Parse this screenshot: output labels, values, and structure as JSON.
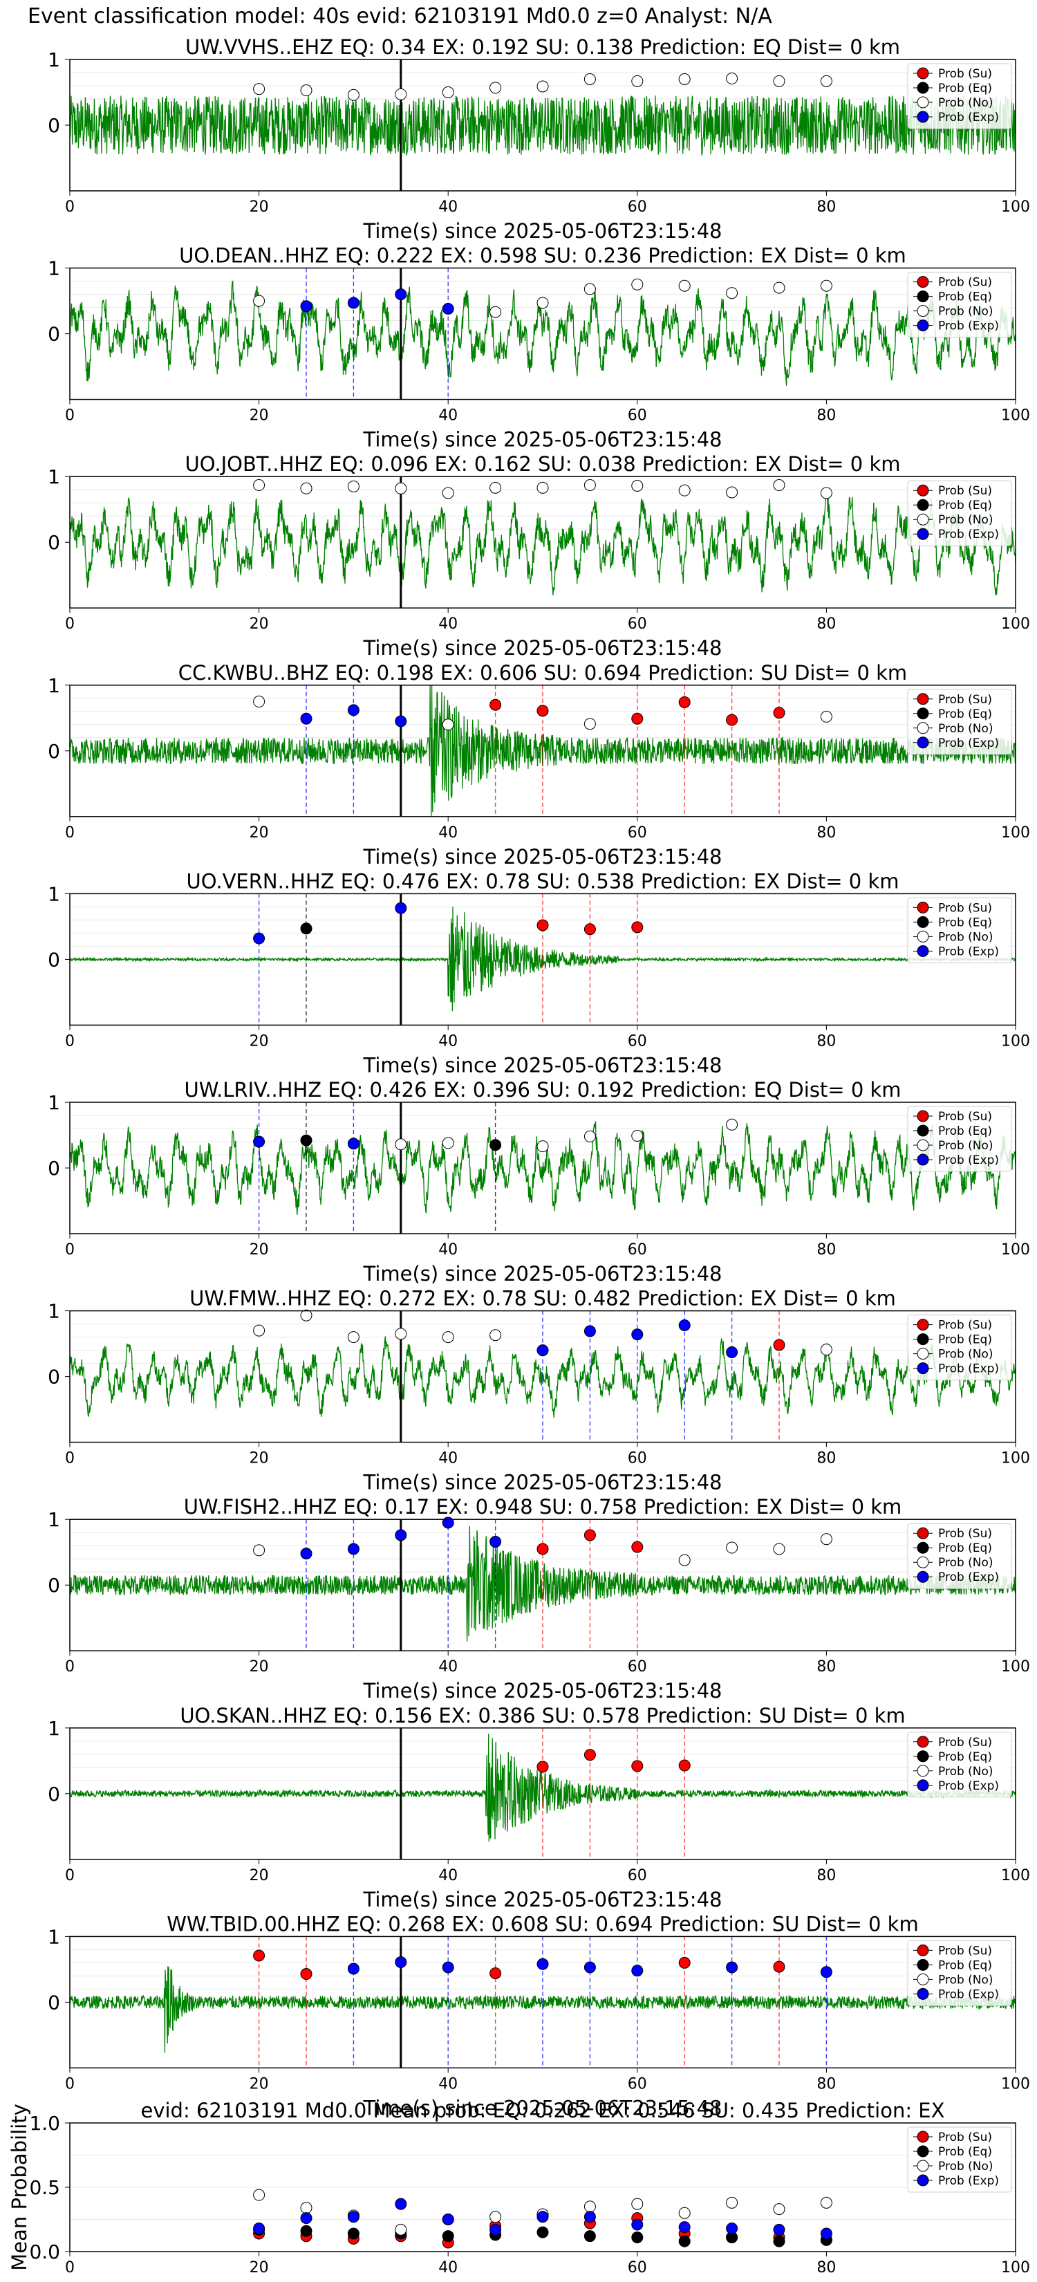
{
  "suptitle": "Event classification model: 40s evid: 62103191 Md0.0 z=0 Analyst: N/A",
  "legend_entries": [
    {
      "label": "Prob (Su)",
      "color": "#e00000",
      "marker": "filled"
    },
    {
      "label": "Prob (Eq)",
      "color": "#000000",
      "marker": "filled"
    },
    {
      "label": "Prob (No)",
      "color": "#ffffff",
      "marker": "open"
    },
    {
      "label": "Prob (Exp)",
      "color": "#0000e0",
      "marker": "filled"
    }
  ],
  "colors": {
    "trace": "#008000",
    "eq": "#000000",
    "ex": "#0000ff",
    "su": "#ff0000",
    "no": "#ffffff"
  },
  "chart_data": [
    {
      "type": "line",
      "title": "UW.VVHS..EHZ   EQ: 0.34  EX: 0.192  SU: 0.138   Prediction: EQ    Dist= 0 km",
      "xlabel": "Time(s) since 2025-05-06T23:15:48",
      "xlim": [
        0,
        100
      ],
      "ylim": [
        -1,
        1
      ],
      "xticks": [
        "0",
        "20",
        "40",
        "60",
        "80",
        "100"
      ],
      "yticks": [
        "0",
        "1"
      ],
      "origin_marker_x": 35,
      "trace": {
        "color": "#008000",
        "style": "noise",
        "amplitude": 0.45,
        "burst": null
      },
      "points": [
        [
          20,
          "No",
          0.55
        ],
        [
          25,
          "No",
          0.53
        ],
        [
          30,
          "No",
          0.46
        ],
        [
          35,
          "No",
          0.47
        ],
        [
          40,
          "No",
          0.5
        ],
        [
          45,
          "No",
          0.57
        ],
        [
          50,
          "No",
          0.59
        ],
        [
          55,
          "No",
          0.7
        ],
        [
          60,
          "No",
          0.67
        ],
        [
          65,
          "No",
          0.7
        ],
        [
          70,
          "No",
          0.71
        ],
        [
          75,
          "No",
          0.67
        ],
        [
          80,
          "No",
          0.67
        ]
      ]
    },
    {
      "type": "line",
      "title": "UO.DEAN..HHZ   EQ: 0.222  EX: 0.598  SU: 0.236   Prediction: EX    Dist= 0 km",
      "xlabel": "Time(s) since 2025-05-06T23:15:48",
      "xlim": [
        0,
        100
      ],
      "ylim": [
        -1,
        1
      ],
      "xticks": [
        "0",
        "20",
        "40",
        "60",
        "80",
        "100"
      ],
      "yticks": [
        "0",
        "1"
      ],
      "origin_marker_x": 35,
      "trace": {
        "color": "#008000",
        "style": "wavy",
        "amplitude": 0.6,
        "burst": null
      },
      "points": [
        [
          20,
          "No",
          0.5
        ],
        [
          25,
          "Exp",
          0.42
        ],
        [
          30,
          "Exp",
          0.47
        ],
        [
          35,
          "Exp",
          0.6
        ],
        [
          40,
          "Exp",
          0.38
        ],
        [
          45,
          "No",
          0.33
        ],
        [
          50,
          "No",
          0.47
        ],
        [
          55,
          "No",
          0.68
        ],
        [
          60,
          "No",
          0.75
        ],
        [
          65,
          "No",
          0.73
        ],
        [
          70,
          "No",
          0.62
        ],
        [
          75,
          "No",
          0.7
        ],
        [
          80,
          "No",
          0.73
        ]
      ]
    },
    {
      "type": "line",
      "title": "UO.JOBT..HHZ   EQ: 0.096  EX: 0.162  SU: 0.038   Prediction: EX    Dist= 0 km",
      "xlabel": "Time(s) since 2025-05-06T23:15:48",
      "xlim": [
        0,
        100
      ],
      "ylim": [
        -1,
        1
      ],
      "xticks": [
        "0",
        "20",
        "40",
        "60",
        "80",
        "100"
      ],
      "yticks": [
        "0",
        "1"
      ],
      "origin_marker_x": 35,
      "trace": {
        "color": "#008000",
        "style": "wavy",
        "amplitude": 0.6,
        "burst": null
      },
      "points": [
        [
          20,
          "No",
          0.87
        ],
        [
          25,
          "No",
          0.82
        ],
        [
          30,
          "No",
          0.85
        ],
        [
          35,
          "No",
          0.82
        ],
        [
          40,
          "No",
          0.75
        ],
        [
          45,
          "No",
          0.83
        ],
        [
          50,
          "No",
          0.83
        ],
        [
          55,
          "No",
          0.87
        ],
        [
          60,
          "No",
          0.86
        ],
        [
          65,
          "No",
          0.79
        ],
        [
          70,
          "No",
          0.76
        ],
        [
          75,
          "No",
          0.87
        ],
        [
          80,
          "No",
          0.75
        ]
      ]
    },
    {
      "type": "line",
      "title": "CC.KWBU..BHZ   EQ: 0.198  EX: 0.606  SU: 0.694   Prediction: SU    Dist= 0 km",
      "xlabel": "Time(s) since 2025-05-06T23:15:48",
      "xlim": [
        0,
        100
      ],
      "ylim": [
        -1,
        1
      ],
      "xticks": [
        "0",
        "20",
        "40",
        "60",
        "80",
        "100"
      ],
      "yticks": [
        "0",
        "1"
      ],
      "origin_marker_x": 35,
      "trace": {
        "color": "#008000",
        "style": "noise",
        "amplitude": 0.2,
        "burst": [
          38,
          52,
          0.95
        ]
      },
      "points": [
        [
          20,
          "No",
          0.75
        ],
        [
          25,
          "Exp",
          0.49
        ],
        [
          30,
          "Exp",
          0.62
        ],
        [
          35,
          "Exp",
          0.45
        ],
        [
          40,
          "No",
          0.4
        ],
        [
          45,
          "Su",
          0.7
        ],
        [
          50,
          "Su",
          0.61
        ],
        [
          55,
          "No",
          0.41
        ],
        [
          60,
          "Su",
          0.49
        ],
        [
          65,
          "Su",
          0.74
        ],
        [
          70,
          "Su",
          0.47
        ],
        [
          75,
          "Su",
          0.58
        ],
        [
          80,
          "No",
          0.52
        ]
      ]
    },
    {
      "type": "line",
      "title": "UO.VERN..HHZ   EQ: 0.476  EX: 0.78  SU: 0.538   Prediction: EX    Dist= 0 km",
      "xlabel": "Time(s) since 2025-05-06T23:15:48",
      "xlim": [
        0,
        100
      ],
      "ylim": [
        -1,
        1
      ],
      "xticks": [
        "0",
        "20",
        "40",
        "60",
        "80",
        "100"
      ],
      "yticks": [
        "0",
        "1"
      ],
      "origin_marker_x": 35,
      "trace": {
        "color": "#008000",
        "style": "flat",
        "amplitude": 0.02,
        "burst": [
          40,
          58,
          0.95
        ]
      },
      "points": [
        [
          20,
          "Exp",
          0.32
        ],
        [
          25,
          "Eq",
          0.47
        ],
        [
          35,
          "Exp",
          0.78
        ],
        [
          50,
          "Su",
          0.52
        ],
        [
          55,
          "Su",
          0.46
        ],
        [
          60,
          "Su",
          0.49
        ]
      ]
    },
    {
      "type": "line",
      "title": "UW.LRIV..HHZ   EQ: 0.426  EX: 0.396  SU: 0.192   Prediction: EQ    Dist= 0 km",
      "xlabel": "Time(s) since 2025-05-06T23:15:48",
      "xlim": [
        0,
        100
      ],
      "ylim": [
        -1,
        1
      ],
      "xticks": [
        "0",
        "20",
        "40",
        "60",
        "80",
        "100"
      ],
      "yticks": [
        "0",
        "1"
      ],
      "origin_marker_x": 35,
      "trace": {
        "color": "#008000",
        "style": "wavy",
        "amplitude": 0.55,
        "burst": null
      },
      "points": [
        [
          20,
          "Exp",
          0.4
        ],
        [
          25,
          "Eq",
          0.42
        ],
        [
          30,
          "Exp",
          0.37
        ],
        [
          35,
          "No",
          0.36
        ],
        [
          40,
          "No",
          0.38
        ],
        [
          45,
          "Eq",
          0.35
        ],
        [
          50,
          "No",
          0.33
        ],
        [
          55,
          "No",
          0.48
        ],
        [
          60,
          "No",
          0.49
        ],
        [
          70,
          "No",
          0.66
        ]
      ]
    },
    {
      "type": "line",
      "title": "UW.FMW..HHZ   EQ: 0.272  EX: 0.78  SU: 0.482   Prediction: EX    Dist= 0 km",
      "xlabel": "Time(s) since 2025-05-06T23:15:48",
      "xlim": [
        0,
        100
      ],
      "ylim": [
        -1,
        1
      ],
      "xticks": [
        "0",
        "20",
        "40",
        "60",
        "80",
        "100"
      ],
      "yticks": [
        "0",
        "1"
      ],
      "origin_marker_x": 35,
      "trace": {
        "color": "#008000",
        "style": "wavy",
        "amplitude": 0.45,
        "burst": null
      },
      "points": [
        [
          20,
          "No",
          0.7
        ],
        [
          25,
          "No",
          0.93
        ],
        [
          30,
          "No",
          0.6
        ],
        [
          35,
          "No",
          0.65
        ],
        [
          40,
          "No",
          0.6
        ],
        [
          45,
          "No",
          0.63
        ],
        [
          50,
          "Exp",
          0.4
        ],
        [
          55,
          "Exp",
          0.69
        ],
        [
          60,
          "Exp",
          0.64
        ],
        [
          65,
          "Exp",
          0.78
        ],
        [
          70,
          "Exp",
          0.37
        ],
        [
          75,
          "Su",
          0.48
        ],
        [
          80,
          "No",
          0.41
        ]
      ]
    },
    {
      "type": "line",
      "title": "UW.FISH2..HHZ   EQ: 0.17  EX: 0.948  SU: 0.758   Prediction: EX    Dist= 0 km",
      "xlabel": "Time(s) since 2025-05-06T23:15:48",
      "xlim": [
        0,
        100
      ],
      "ylim": [
        -1,
        1
      ],
      "xticks": [
        "0",
        "20",
        "40",
        "60",
        "80",
        "100"
      ],
      "yticks": [
        "0",
        "1"
      ],
      "origin_marker_x": 35,
      "trace": {
        "color": "#008000",
        "style": "noise",
        "amplitude": 0.15,
        "burst": [
          42,
          60,
          0.9
        ]
      },
      "points": [
        [
          20,
          "No",
          0.53
        ],
        [
          25,
          "Exp",
          0.48
        ],
        [
          30,
          "Exp",
          0.55
        ],
        [
          35,
          "Exp",
          0.76
        ],
        [
          40,
          "Exp",
          0.95
        ],
        [
          45,
          "Exp",
          0.66
        ],
        [
          50,
          "Su",
          0.55
        ],
        [
          55,
          "Su",
          0.76
        ],
        [
          60,
          "Su",
          0.58
        ],
        [
          65,
          "No",
          0.38
        ],
        [
          70,
          "No",
          0.57
        ],
        [
          75,
          "No",
          0.55
        ],
        [
          80,
          "No",
          0.7
        ]
      ]
    },
    {
      "type": "line",
      "title": "UO.SKAN..HHZ   EQ: 0.156  EX: 0.386  SU: 0.578   Prediction: SU    Dist= 0 km",
      "xlabel": "Time(s) since 2025-05-06T23:15:48",
      "xlim": [
        0,
        100
      ],
      "ylim": [
        -1,
        1
      ],
      "xticks": [
        "0",
        "20",
        "40",
        "60",
        "80",
        "100"
      ],
      "yticks": [
        "0",
        "1"
      ],
      "origin_marker_x": 35,
      "trace": {
        "color": "#008000",
        "style": "flat",
        "amplitude": 0.05,
        "burst": [
          44,
          60,
          0.95
        ]
      },
      "points": [
        [
          50,
          "Su",
          0.41
        ],
        [
          55,
          "Su",
          0.59
        ],
        [
          60,
          "Su",
          0.42
        ],
        [
          65,
          "Su",
          0.43
        ]
      ]
    },
    {
      "type": "line",
      "title": "WW.TBID.00.HHZ   EQ: 0.268  EX: 0.608  SU: 0.694   Prediction: SU    Dist= 0 km",
      "xlabel": "Time(s) since 2025-05-06T23:15:48",
      "xlim": [
        0,
        100
      ],
      "ylim": [
        -1,
        1
      ],
      "xticks": [
        "0",
        "20",
        "40",
        "60",
        "80",
        "100"
      ],
      "yticks": [
        "0",
        "1"
      ],
      "origin_marker_x": 35,
      "trace": {
        "color": "#008000",
        "style": "noise",
        "amplitude": 0.1,
        "burst": [
          10,
          13,
          0.95
        ]
      },
      "points": [
        [
          20,
          "Su",
          0.71
        ],
        [
          25,
          "Su",
          0.43
        ],
        [
          30,
          "Exp",
          0.51
        ],
        [
          35,
          "Exp",
          0.61
        ],
        [
          40,
          "Exp",
          0.53
        ],
        [
          45,
          "Su",
          0.44
        ],
        [
          50,
          "Exp",
          0.58
        ],
        [
          55,
          "Exp",
          0.53
        ],
        [
          60,
          "Exp",
          0.48
        ],
        [
          65,
          "Su",
          0.6
        ],
        [
          70,
          "Exp",
          0.53
        ],
        [
          75,
          "Su",
          0.54
        ],
        [
          80,
          "Exp",
          0.46
        ]
      ]
    },
    {
      "type": "scatter",
      "title": "evid: 62103191  Md0.0   Mean prob:   EQ: 0.262  EX: 0.546  SU: 0.435   Prediction: EX",
      "ylabel": "Mean Probability",
      "xlim": [
        0,
        100
      ],
      "ylim": [
        0,
        1
      ],
      "xticks": [
        "0",
        "20",
        "40",
        "60",
        "80",
        "100"
      ],
      "yticks": [
        "0.0",
        "0.5",
        "1.0"
      ],
      "series": [
        {
          "name": "Prob (Su)",
          "x": [
            20,
            25,
            30,
            35,
            40,
            45,
            50,
            55,
            60,
            65,
            70,
            75,
            80
          ],
          "values": [
            0.14,
            0.12,
            0.1,
            0.12,
            0.07,
            0.2,
            0.28,
            0.22,
            0.26,
            0.14,
            0.11,
            0.11,
            0.09
          ]
        },
        {
          "name": "Prob (Eq)",
          "x": [
            20,
            25,
            30,
            35,
            40,
            45,
            50,
            55,
            60,
            65,
            70,
            75,
            80
          ],
          "values": [
            0.17,
            0.16,
            0.14,
            0.14,
            0.12,
            0.13,
            0.15,
            0.12,
            0.11,
            0.08,
            0.11,
            0.08,
            0.09
          ]
        },
        {
          "name": "Prob (No)",
          "x": [
            20,
            25,
            30,
            35,
            40,
            45,
            50,
            55,
            60,
            65,
            70,
            75,
            80
          ],
          "values": [
            0.44,
            0.34,
            0.28,
            0.17,
            0.25,
            0.27,
            0.29,
            0.35,
            0.37,
            0.3,
            0.38,
            0.33,
            0.38
          ]
        },
        {
          "name": "Prob (Exp)",
          "x": [
            20,
            25,
            30,
            35,
            40,
            45,
            50,
            55,
            60,
            65,
            70,
            75,
            80
          ],
          "values": [
            0.18,
            0.26,
            0.27,
            0.37,
            0.25,
            0.17,
            0.27,
            0.27,
            0.21,
            0.19,
            0.18,
            0.17,
            0.14
          ]
        }
      ]
    }
  ]
}
